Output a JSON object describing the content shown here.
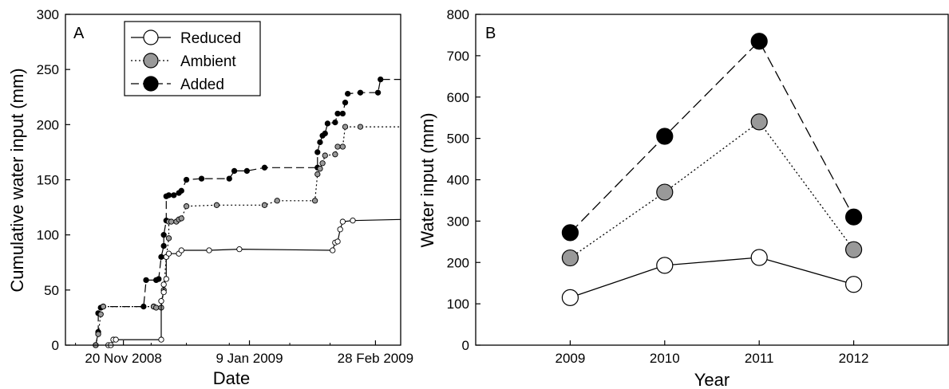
{
  "chart_data": [
    {
      "panel_label": "A",
      "type": "line",
      "xlabel": "Date",
      "ylabel": "Cumulative water input (mm)",
      "xticks": [
        "20 Nov 2008",
        "9 Jan 2009",
        "28 Feb 2009"
      ],
      "xlim": [
        "2008-10-28",
        "2009-03-10"
      ],
      "ylim": [
        0,
        300
      ],
      "yticks": [
        "0",
        "50",
        "100",
        "150",
        "200",
        "250",
        "300"
      ],
      "legend": {
        "placement": "top-left"
      },
      "series": [
        {
          "name": "Reduced",
          "marker": "open-circle",
          "line": "solid",
          "color": "#ffffff",
          "points": [
            [
              "2008-11-14",
              0
            ],
            [
              "2008-11-15",
              0
            ],
            [
              "2008-11-16",
              5
            ],
            [
              "2008-11-17",
              5
            ],
            [
              "2008-12-05",
              5
            ],
            [
              "2008-12-05",
              40
            ],
            [
              "2008-12-06",
              48
            ],
            [
              "2008-12-06",
              55
            ],
            [
              "2008-12-07",
              60
            ],
            [
              "2008-12-07",
              80
            ],
            [
              "2008-12-08",
              83
            ],
            [
              "2008-12-12",
              83
            ],
            [
              "2008-12-13",
              86
            ],
            [
              "2008-12-24",
              86
            ],
            [
              "2009-01-05",
              87
            ],
            [
              "2009-02-11",
              86
            ],
            [
              "2009-02-12",
              93
            ],
            [
              "2009-02-13",
              94
            ],
            [
              "2009-02-14",
              105
            ],
            [
              "2009-02-15",
              112
            ],
            [
              "2009-02-19",
              113
            ],
            [
              "2009-03-10",
              114
            ]
          ]
        },
        {
          "name": "Ambient",
          "marker": "grey-circle",
          "line": "dotted",
          "color": "#999999",
          "points": [
            [
              "2008-11-09",
              0
            ],
            [
              "2008-11-10",
              10
            ],
            [
              "2008-11-11",
              28
            ],
            [
              "2008-11-12",
              35
            ],
            [
              "2008-12-02",
              35
            ],
            [
              "2008-12-02",
              35
            ],
            [
              "2008-12-03",
              34
            ],
            [
              "2008-12-05",
              34
            ],
            [
              "2008-12-06",
              50
            ],
            [
              "2008-12-07",
              80
            ],
            [
              "2008-12-08",
              97
            ],
            [
              "2008-12-08",
              112
            ],
            [
              "2008-12-09",
              112
            ],
            [
              "2008-12-11",
              112
            ],
            [
              "2008-12-12",
              114
            ],
            [
              "2008-12-13",
              115
            ],
            [
              "2008-12-15",
              126
            ],
            [
              "2008-12-27",
              127
            ],
            [
              "2009-01-15",
              127
            ],
            [
              "2009-01-20",
              131
            ],
            [
              "2009-02-04",
              131
            ],
            [
              "2009-02-05",
              155
            ],
            [
              "2009-02-06",
              160
            ],
            [
              "2009-02-07",
              165
            ],
            [
              "2009-02-08",
              172
            ],
            [
              "2009-02-12",
              173
            ],
            [
              "2009-02-13",
              180
            ],
            [
              "2009-02-15",
              180
            ],
            [
              "2009-02-16",
              198
            ],
            [
              "2009-02-22",
              198
            ],
            [
              "2009-03-10",
              198
            ]
          ]
        },
        {
          "name": "Added",
          "marker": "filled-circle",
          "line": "dashed",
          "color": "#000000",
          "points": [
            [
              "2008-11-09",
              0
            ],
            [
              "2008-11-10",
              12
            ],
            [
              "2008-11-10",
              29
            ],
            [
              "2008-11-11",
              34
            ],
            [
              "2008-11-12",
              35
            ],
            [
              "2008-11-28",
              35
            ],
            [
              "2008-11-29",
              59
            ],
            [
              "2008-12-03",
              59
            ],
            [
              "2008-12-04",
              60
            ],
            [
              "2008-12-05",
              80
            ],
            [
              "2008-12-06",
              90
            ],
            [
              "2008-12-06",
              100
            ],
            [
              "2008-12-07",
              113
            ],
            [
              "2008-12-07",
              135
            ],
            [
              "2008-12-08",
              136
            ],
            [
              "2008-12-10",
              136
            ],
            [
              "2008-12-12",
              138
            ],
            [
              "2008-12-13",
              140
            ],
            [
              "2008-12-15",
              150
            ],
            [
              "2008-12-21",
              151
            ],
            [
              "2009-01-01",
              151
            ],
            [
              "2009-01-03",
              158
            ],
            [
              "2009-01-08",
              158
            ],
            [
              "2009-01-15",
              161
            ],
            [
              "2009-02-05",
              161
            ],
            [
              "2009-02-05",
              175
            ],
            [
              "2009-02-06",
              184
            ],
            [
              "2009-02-07",
              190
            ],
            [
              "2009-02-08",
              192
            ],
            [
              "2009-02-09",
              201
            ],
            [
              "2009-02-12",
              202
            ],
            [
              "2009-02-13",
              210
            ],
            [
              "2009-02-15",
              210
            ],
            [
              "2009-02-16",
              220
            ],
            [
              "2009-02-17",
              228
            ],
            [
              "2009-02-22",
              229
            ],
            [
              "2009-03-01",
              229
            ],
            [
              "2009-03-02",
              241
            ],
            [
              "2009-03-10",
              241
            ]
          ]
        }
      ]
    },
    {
      "panel_label": "B",
      "type": "line",
      "xlabel": "Year",
      "ylabel": "Water input (mm)",
      "categories": [
        "2009",
        "2010",
        "2011",
        "2012"
      ],
      "xlim": [
        2008,
        2013
      ],
      "ylim": [
        0,
        800
      ],
      "yticks": [
        "0",
        "100",
        "200",
        "300",
        "400",
        "500",
        "600",
        "700",
        "800"
      ],
      "series": [
        {
          "name": "Reduced",
          "marker": "open-circle",
          "line": "solid",
          "color": "#ffffff",
          "values": [
            115,
            193,
            212,
            147
          ]
        },
        {
          "name": "Ambient",
          "marker": "grey-circle",
          "line": "dotted",
          "color": "#999999",
          "values": [
            211,
            370,
            540,
            231
          ]
        },
        {
          "name": "Added",
          "marker": "filled-circle",
          "line": "dashed",
          "color": "#000000",
          "values": [
            272,
            505,
            735,
            310
          ]
        }
      ]
    }
  ]
}
